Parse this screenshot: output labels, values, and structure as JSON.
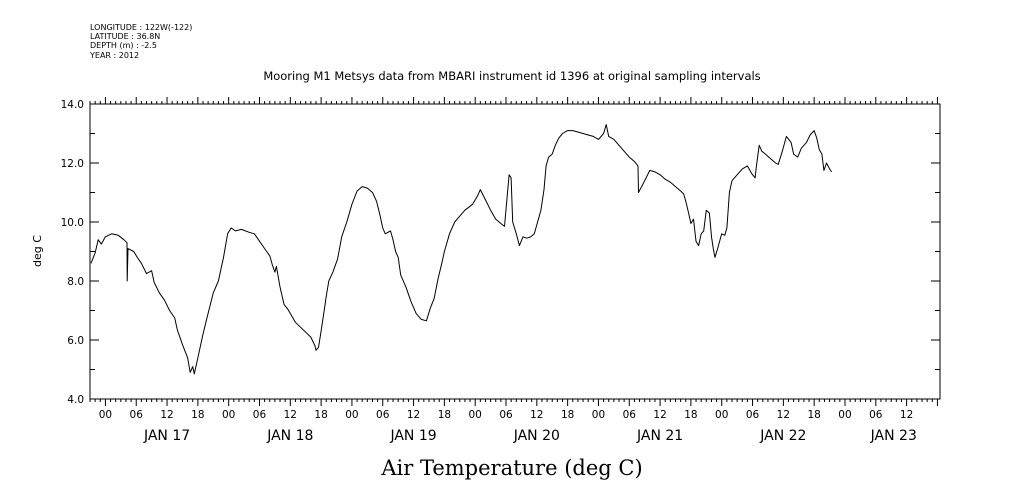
{
  "header": {
    "lines": [
      "LONGITUDE : 122W(-122)",
      "LATITUDE : 36.8N",
      "DEPTH (m) : -2.5",
      "YEAR : 2012"
    ]
  },
  "chart_data": {
    "type": "line",
    "title": "Mooring M1 Metsys data from MBARI instrument id 1396 at original sampling intervals",
    "xlabel": "Air Temperature (deg C)",
    "ylabel": "deg C",
    "ylim": [
      4.0,
      14.0
    ],
    "yticks": [
      "4.0",
      "6.0",
      "8.0",
      "10.0",
      "12.0",
      "14.0"
    ],
    "x_units": "hours since 2012-01-16T21:00",
    "xlim": [
      0,
      165.5
    ],
    "hour_ticks": [
      {
        "x": 3,
        "label": "00"
      },
      {
        "x": 9,
        "label": "06"
      },
      {
        "x": 15,
        "label": "12"
      },
      {
        "x": 21,
        "label": "18"
      },
      {
        "x": 27,
        "label": "00"
      },
      {
        "x": 33,
        "label": "06"
      },
      {
        "x": 39,
        "label": "12"
      },
      {
        "x": 45,
        "label": "18"
      },
      {
        "x": 51,
        "label": "00"
      },
      {
        "x": 57,
        "label": "06"
      },
      {
        "x": 63,
        "label": "12"
      },
      {
        "x": 69,
        "label": "18"
      },
      {
        "x": 75,
        "label": "00"
      },
      {
        "x": 81,
        "label": "06"
      },
      {
        "x": 87,
        "label": "12"
      },
      {
        "x": 93,
        "label": "18"
      },
      {
        "x": 99,
        "label": "00"
      },
      {
        "x": 105,
        "label": "06"
      },
      {
        "x": 111,
        "label": "12"
      },
      {
        "x": 117,
        "label": "18"
      },
      {
        "x": 123,
        "label": "00"
      },
      {
        "x": 129,
        "label": "06"
      },
      {
        "x": 135,
        "label": "12"
      },
      {
        "x": 141,
        "label": "18"
      },
      {
        "x": 147,
        "label": "00"
      },
      {
        "x": 153,
        "label": "06"
      },
      {
        "x": 159,
        "label": "12"
      }
    ],
    "day_labels": [
      {
        "x": 15,
        "label": "JAN 17"
      },
      {
        "x": 39,
        "label": "JAN 18"
      },
      {
        "x": 63,
        "label": "JAN 19"
      },
      {
        "x": 87,
        "label": "JAN 20"
      },
      {
        "x": 111,
        "label": "JAN 21"
      },
      {
        "x": 135,
        "label": "JAN 22"
      },
      {
        "x": 156.5,
        "label": "JAN 23"
      }
    ],
    "series": [
      {
        "points": [
          [
            0.2,
            8.6
          ],
          [
            1.0,
            8.95
          ],
          [
            1.6,
            9.4
          ],
          [
            2.2,
            9.25
          ],
          [
            3.0,
            9.5
          ],
          [
            4.2,
            9.6
          ],
          [
            5.5,
            9.55
          ],
          [
            6.6,
            9.4
          ],
          [
            7.2,
            9.3
          ],
          [
            7.25,
            8.0
          ],
          [
            7.4,
            9.1
          ],
          [
            8.5,
            9.0
          ],
          [
            9.2,
            8.8
          ],
          [
            10.0,
            8.6
          ],
          [
            11.0,
            8.25
          ],
          [
            12.0,
            8.35
          ],
          [
            12.5,
            7.95
          ],
          [
            13.5,
            7.6
          ],
          [
            14.5,
            7.35
          ],
          [
            15.5,
            7.0
          ],
          [
            16.5,
            6.75
          ],
          [
            17.0,
            6.35
          ],
          [
            18.0,
            5.85
          ],
          [
            19.0,
            5.4
          ],
          [
            19.5,
            4.9
          ],
          [
            20.0,
            5.1
          ],
          [
            20.3,
            4.85
          ],
          [
            21.0,
            5.4
          ],
          [
            22.0,
            6.2
          ],
          [
            23.0,
            6.9
          ],
          [
            24.0,
            7.6
          ],
          [
            25.0,
            8.0
          ],
          [
            26.0,
            8.8
          ],
          [
            26.8,
            9.6
          ],
          [
            27.5,
            9.8
          ],
          [
            28.3,
            9.7
          ],
          [
            29.5,
            9.75
          ],
          [
            31.0,
            9.65
          ],
          [
            32.0,
            9.6
          ],
          [
            33.0,
            9.35
          ],
          [
            34.0,
            9.1
          ],
          [
            35.0,
            8.85
          ],
          [
            35.5,
            8.55
          ],
          [
            36.0,
            8.3
          ],
          [
            36.3,
            8.5
          ],
          [
            37.0,
            7.8
          ],
          [
            37.8,
            7.2
          ],
          [
            38.5,
            7.05
          ],
          [
            40.0,
            6.6
          ],
          [
            41.5,
            6.35
          ],
          [
            43.0,
            6.1
          ],
          [
            43.8,
            5.8
          ],
          [
            44.0,
            5.65
          ],
          [
            44.5,
            5.75
          ],
          [
            45.0,
            6.3
          ],
          [
            45.6,
            7.0
          ],
          [
            46.0,
            7.5
          ],
          [
            46.5,
            8.0
          ],
          [
            47.3,
            8.3
          ],
          [
            48.2,
            8.75
          ],
          [
            49.0,
            9.5
          ],
          [
            50.0,
            10.0
          ],
          [
            51.0,
            10.6
          ],
          [
            52.0,
            11.05
          ],
          [
            53.0,
            11.2
          ],
          [
            54.0,
            11.15
          ],
          [
            55.0,
            11.0
          ],
          [
            55.8,
            10.7
          ],
          [
            56.5,
            10.2
          ],
          [
            57.0,
            9.8
          ],
          [
            57.5,
            9.6
          ],
          [
            58.5,
            9.7
          ],
          [
            59.0,
            9.4
          ],
          [
            59.5,
            9.0
          ],
          [
            60.0,
            8.8
          ],
          [
            60.5,
            8.2
          ],
          [
            61.5,
            7.8
          ],
          [
            62.5,
            7.3
          ],
          [
            63.5,
            6.9
          ],
          [
            64.5,
            6.7
          ],
          [
            65.5,
            6.65
          ],
          [
            66.3,
            7.1
          ],
          [
            67.0,
            7.4
          ],
          [
            67.8,
            8.1
          ],
          [
            68.5,
            8.6
          ],
          [
            69.0,
            9.0
          ],
          [
            70.0,
            9.6
          ],
          [
            71.0,
            10.0
          ],
          [
            72.0,
            10.2
          ],
          [
            73.0,
            10.4
          ],
          [
            74.5,
            10.6
          ],
          [
            75.5,
            10.9
          ],
          [
            76.0,
            11.1
          ],
          [
            77.0,
            10.75
          ],
          [
            78.0,
            10.4
          ],
          [
            79.0,
            10.1
          ],
          [
            80.0,
            9.95
          ],
          [
            80.7,
            9.85
          ],
          [
            81.2,
            10.8
          ],
          [
            81.6,
            11.6
          ],
          [
            82.0,
            11.5
          ],
          [
            82.3,
            10.0
          ],
          [
            83.0,
            9.6
          ],
          [
            83.6,
            9.2
          ],
          [
            84.3,
            9.5
          ],
          [
            85.0,
            9.45
          ],
          [
            85.8,
            9.5
          ],
          [
            86.5,
            9.6
          ],
          [
            87.0,
            9.9
          ],
          [
            87.8,
            10.4
          ],
          [
            88.4,
            11.1
          ],
          [
            88.8,
            11.9
          ],
          [
            89.3,
            12.2
          ],
          [
            90.0,
            12.3
          ],
          [
            90.6,
            12.6
          ],
          [
            91.3,
            12.85
          ],
          [
            92.0,
            13.0
          ],
          [
            93.0,
            13.1
          ],
          [
            94.0,
            13.1
          ],
          [
            95.0,
            13.05
          ],
          [
            96.0,
            13.0
          ],
          [
            97.0,
            12.95
          ],
          [
            98.0,
            12.9
          ],
          [
            99.0,
            12.8
          ],
          [
            100.0,
            13.0
          ],
          [
            100.5,
            13.3
          ],
          [
            101.0,
            12.9
          ],
          [
            102.0,
            12.8
          ],
          [
            103.0,
            12.6
          ],
          [
            104.0,
            12.4
          ],
          [
            105.0,
            12.2
          ],
          [
            106.0,
            12.05
          ],
          [
            106.7,
            11.9
          ],
          [
            106.8,
            11.0
          ],
          [
            108.0,
            11.4
          ],
          [
            109.0,
            11.75
          ],
          [
            110.0,
            11.7
          ],
          [
            111.0,
            11.6
          ],
          [
            112.0,
            11.45
          ],
          [
            113.0,
            11.35
          ],
          [
            114.0,
            11.2
          ],
          [
            115.0,
            11.05
          ],
          [
            115.6,
            10.95
          ],
          [
            116.0,
            10.7
          ],
          [
            116.5,
            10.35
          ],
          [
            117.0,
            9.95
          ],
          [
            117.5,
            10.1
          ],
          [
            118.0,
            9.35
          ],
          [
            118.5,
            9.2
          ],
          [
            119.0,
            9.6
          ],
          [
            119.5,
            9.7
          ],
          [
            120.0,
            10.4
          ],
          [
            120.6,
            10.3
          ],
          [
            121.0,
            9.5
          ],
          [
            121.4,
            9.05
          ],
          [
            121.7,
            8.8
          ],
          [
            122.2,
            9.1
          ],
          [
            123.0,
            9.6
          ],
          [
            123.6,
            9.55
          ],
          [
            124.0,
            9.8
          ],
          [
            124.5,
            11.0
          ],
          [
            125.0,
            11.4
          ],
          [
            126.0,
            11.6
          ],
          [
            127.0,
            11.8
          ],
          [
            128.0,
            11.9
          ],
          [
            128.8,
            11.65
          ],
          [
            129.5,
            11.5
          ],
          [
            129.8,
            11.95
          ],
          [
            130.3,
            12.6
          ],
          [
            130.8,
            12.4
          ],
          [
            131.5,
            12.3
          ],
          [
            132.5,
            12.15
          ],
          [
            133.5,
            12.0
          ],
          [
            134.0,
            11.95
          ],
          [
            134.8,
            12.4
          ],
          [
            135.6,
            12.9
          ],
          [
            136.5,
            12.7
          ],
          [
            137.0,
            12.3
          ],
          [
            137.8,
            12.2
          ],
          [
            138.5,
            12.5
          ],
          [
            139.5,
            12.7
          ],
          [
            140.2,
            12.95
          ],
          [
            141.0,
            13.1
          ],
          [
            141.5,
            12.85
          ],
          [
            142.0,
            12.45
          ],
          [
            142.5,
            12.3
          ],
          [
            142.9,
            11.75
          ],
          [
            143.4,
            12.0
          ],
          [
            144.0,
            11.8
          ],
          [
            144.4,
            11.7
          ]
        ]
      }
    ]
  }
}
